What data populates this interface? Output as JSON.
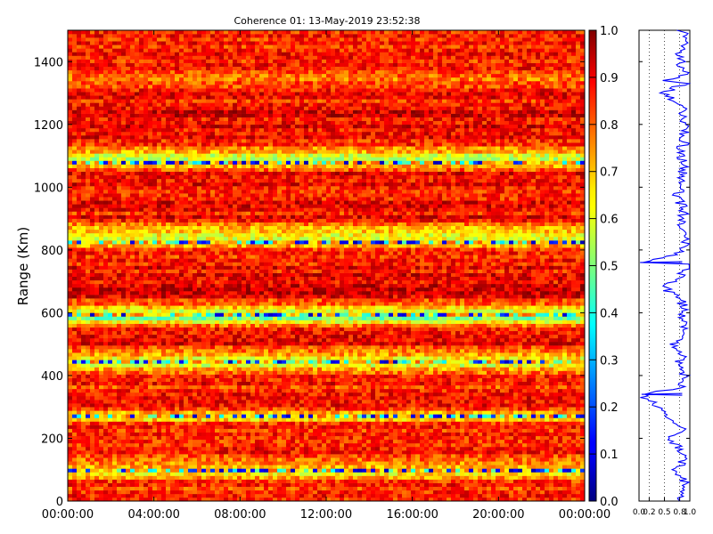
{
  "chart_data": [
    {
      "type": "heatmap",
      "title": "Coherence 01: 13-May-2019 23:52:38",
      "xlabel": "",
      "ylabel": "Range (Km)",
      "x_tick_labels": [
        "00:00:00",
        "04:00:00",
        "08:00:00",
        "12:00:00",
        "16:00:00",
        "20:00:00",
        "00:00:00"
      ],
      "y_tick_labels": [
        "0",
        "200",
        "400",
        "600",
        "800",
        "1000",
        "1200",
        "1400"
      ],
      "ylim": [
        0,
        1500
      ],
      "colormap": "jet",
      "colorbar": {
        "range": [
          0.0,
          1.0
        ],
        "tick_labels": [
          "0.0",
          "0.1",
          "0.2",
          "0.3",
          "0.4",
          "0.5",
          "0.6",
          "0.7",
          "0.8",
          "0.9",
          "1.0"
        ]
      },
      "range_profile": {
        "range_km": [
          0,
          50,
          100,
          150,
          200,
          250,
          270,
          300,
          350,
          400,
          440,
          450,
          500,
          550,
          580,
          600,
          650,
          700,
          750,
          800,
          830,
          850,
          900,
          950,
          1000,
          1050,
          1080,
          1100,
          1150,
          1200,
          1250,
          1300,
          1350,
          1400,
          1450,
          1500
        ],
        "mean_coherence": [
          0.82,
          0.85,
          0.62,
          0.86,
          0.8,
          0.84,
          0.55,
          0.86,
          0.83,
          0.85,
          0.6,
          0.62,
          0.86,
          0.84,
          0.52,
          0.6,
          0.88,
          0.9,
          0.86,
          0.84,
          0.58,
          0.6,
          0.86,
          0.88,
          0.87,
          0.86,
          0.55,
          0.62,
          0.88,
          0.89,
          0.87,
          0.86,
          0.75,
          0.87,
          0.85,
          0.86
        ]
      }
    },
    {
      "type": "line",
      "title": "",
      "xlabel": "",
      "ylabel": "",
      "xlim": [
        0.0,
        1.0
      ],
      "ylim": [
        0,
        1500
      ],
      "x_tick_labels": [
        "0.0",
        "0.2",
        "0.5",
        "0.8",
        "1.0"
      ],
      "series": [
        {
          "color": "#0000ff",
          "x": [
            0.86,
            0.8,
            0.88,
            0.74,
            0.9,
            0.85,
            0.6,
            0.88,
            0.05,
            0.82,
            0.9,
            0.78,
            0.86,
            0.7,
            0.9,
            0.85,
            0.88,
            0.83,
            0.5,
            0.86,
            0.9,
            0.8,
            0.92,
            0.88,
            0.02,
            0.86,
            0.9,
            0.72,
            0.88,
            0.85,
            0.9,
            0.76,
            0.88,
            0.9,
            0.84,
            0.86,
            0.45,
            0.9,
            0.88,
            0.82,
            0.8,
            0.92,
            0.86,
            0.88,
            0.55,
            0.9,
            0.87,
            0.85
          ],
          "y": [
            0,
            30,
            60,
            100,
            130,
            160,
            200,
            230,
            340,
            360,
            400,
            440,
            470,
            500,
            530,
            560,
            600,
            640,
            680,
            720,
            760,
            790,
            820,
            850,
            760,
            890,
            930,
            970,
            1000,
            1040,
            1080,
            1110,
            1140,
            1180,
            1220,
            1260,
            1300,
            1330,
            1360,
            1390,
            1420,
            1440,
            1460,
            1480,
            1340,
            1490,
            1495,
            1500
          ]
        }
      ]
    }
  ]
}
